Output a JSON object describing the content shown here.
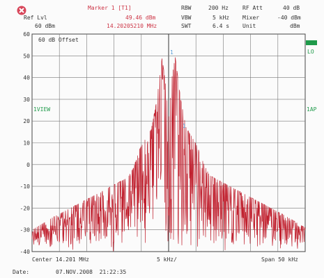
{
  "header": {
    "marker_label": "Marker 1 [T1]",
    "marker_level": "49.46 dBm",
    "marker_freq": "14.20205210 MHz",
    "ref_lvl_label": "Ref Lvl",
    "ref_lvl_value": "60 dBm",
    "rbw_label": "RBW",
    "rbw_value": "200 Hz",
    "vbw_label": "VBW",
    "vbw_value": "5 kHz",
    "swt_label": "SWT",
    "swt_value": "6.4 s",
    "rf_att_label": "RF Att",
    "rf_att_value": "40 dB",
    "mixer_label": "Mixer",
    "mixer_value": "-40 dBm",
    "unit_label": "Unit",
    "unit_value": "dBm"
  },
  "plot": {
    "offset_label": "60 dB Offset",
    "view_label": "1VIEW",
    "right_label_lo": "LO",
    "right_label_ap": "1AP",
    "marker_1": "1",
    "marker_2": "1"
  },
  "footer": {
    "center": "Center 14.201 MHz",
    "div": "5 kHz/",
    "span": "Span 50 kHz",
    "date_label": "Date:",
    "date_value": "07.NOV.2008  21:22:35"
  },
  "colors": {
    "trace": "#c0202e",
    "grid": "#555555",
    "accent_text": "#cc3344",
    "status_green": "#1f9a4a"
  },
  "chart_data": {
    "type": "line",
    "x_range_khz": [
      -25,
      25
    ],
    "ylim": [
      -40,
      60
    ],
    "y_ticks": [
      60,
      50,
      40,
      30,
      20,
      10,
      0,
      -10,
      -20,
      -30,
      -40
    ],
    "grid": true,
    "series": [
      {
        "x": [
          -25,
          -23,
          -21,
          -19.5,
          -18,
          -16.5,
          -15,
          -13.5,
          -12,
          -10.5,
          -9,
          -7.5,
          -6.5,
          -5.3,
          -4.2,
          -3.2,
          -2.2,
          -1.2,
          -0.6,
          0,
          0.6,
          1.2,
          2.2,
          3.2,
          4.2,
          5.3,
          6.5,
          7.5,
          9,
          10.5,
          12,
          13.5,
          15,
          16.5,
          18,
          19.5,
          21,
          23,
          25
        ],
        "y": [
          -30,
          -27,
          -24,
          -22,
          -20,
          -18,
          -16,
          -14,
          -12,
          -10,
          -8,
          -6,
          -2,
          7,
          12,
          16,
          29,
          49,
          38,
          20,
          40,
          49.5,
          30,
          17,
          13,
          8,
          0,
          -5,
          -7,
          -9,
          -11,
          -13,
          -15,
          -17,
          -19,
          -21,
          -23,
          -26,
          -29
        ]
      }
    ]
  }
}
